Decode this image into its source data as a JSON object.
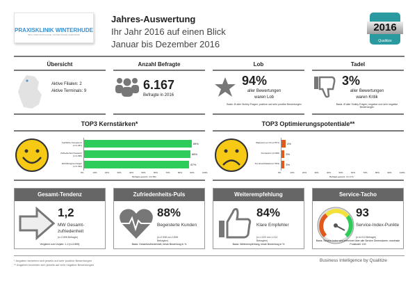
{
  "header": {
    "logo_name": "PRAXISKLINIK WINTERHUDE",
    "logo_sub": "MKG | IMPLANTOLOGIE | ÄSTHETISCHE CHIRURGIE",
    "title": "Jahres-Auswertung",
    "subtitle": "Ihr Jahr 2016 auf einen Blick",
    "period": "Januar bis Dezember 2016",
    "badge_year": "2016",
    "badge_brand": "Qualitize"
  },
  "overview": {
    "title": "Übersicht",
    "filialen": "Aktive Filialen: 2",
    "terminals": "Aktive Terminals: 9"
  },
  "befragte": {
    "title": "Anzahl Befragte",
    "value": "6.167",
    "label": "Befragte in 2016"
  },
  "lob": {
    "title": "Lob",
    "value": "94%",
    "label1": "aller Bewertungen",
    "label2": "waren Lob",
    "basis": "Basis: Ø aller Smiley-Fragen; positive und sehr positive Bewertungen"
  },
  "tadel": {
    "title": "Tadel",
    "value": "3%",
    "label1": "aller Bewertungen",
    "label2": "waren Kritik",
    "basis": "Basis: Ø aller Smiley-Fragen; negative und sehr negative Bewertungen"
  },
  "chart_data": [
    {
      "type": "bar",
      "title": "TOP3 Kernstärken*",
      "categories": [
        "Fachliche Kompetenz (n=1.467)",
        "Zufriedenheit (Gesamt) (n=1.395)",
        "Einfühlungsvermögen (n=1.434)"
      ],
      "values": [
        89,
        88,
        87
      ],
      "xlim": [
        0,
        100
      ],
      "xticks": [
        "0%",
        "10%",
        "20%",
        "30%",
        "40%",
        "50%",
        "60%",
        "70%",
        "80%",
        "90%",
        "100%"
      ],
      "xlabel": "Befragte gesamt: n=2.591",
      "color": "#2ecc5a"
    },
    {
      "type": "bar",
      "title": "TOP3 Optimierungspotentiale**",
      "categories": [
        "Wartezeit vor Ort (n=571)",
        "Kompetenz (n=400)",
        "Tel. Erreichbarkeit (n=543)"
      ],
      "values": [
        4,
        3,
        3
      ],
      "xlim": [
        0,
        100
      ],
      "xticks": [
        "0%",
        "10%",
        "20%",
        "30%",
        "40%",
        "50%",
        "60%",
        "70%",
        "80%",
        "90%",
        "100%"
      ],
      "xlabel": "Befragte gesamt: n=1.171",
      "color": "#e05a1e"
    }
  ],
  "cards": [
    {
      "title": "Gesamt-Tendenz",
      "value": "1,2",
      "label": "MW Gesamt-zufriedenheit",
      "n": "(n=2.896 Befragte)",
      "footer": "Vergleich zum Vorjahr: 1,2 (n=2.895)"
    },
    {
      "title": "Zufriedenheits-Puls",
      "value": "88%",
      "label": "Begeisterte Kunden",
      "n": "(n=2.538 von 2.896 Befragten)",
      "footer": "Basis: Gesamtzufriedenheit, beste Bewertung in %"
    },
    {
      "title": "Weiterempfehlung",
      "value": "84%",
      "label": "Klare Empfehler",
      "n": "(n=1.022 von 1.212 Befragten)",
      "footer": "Basis: Weiterempfehlung, beste Bewertung in %"
    },
    {
      "title": "Service-Tacho",
      "value": "93",
      "label": "Service-Index-Punkte",
      "n": "(n=6.013 Befragte)",
      "footer": "Basis: Service-Index wird errechnet über alle Service Dimensionen, maximale Punktzahl: 100",
      "gauge_value": 93,
      "gauge_min": "0",
      "gauge_max": "100"
    }
  ],
  "footer": {
    "note1": "* Angaben beziehen sich jeweils auf sehr positive Bewertungen",
    "note2": "** Angaben beziehen sich jeweils auf sehr negative Bewertungen",
    "brand": "Business Intelligence by Qualitize"
  }
}
